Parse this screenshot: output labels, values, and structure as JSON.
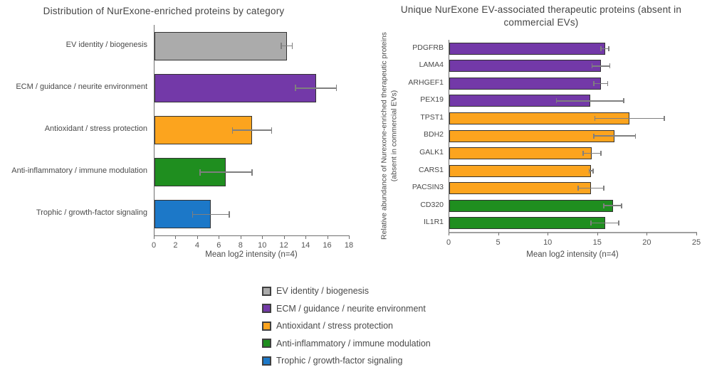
{
  "colors": {
    "gray": "#ABABAB",
    "purple": "#7339A8",
    "orange": "#FCA41E",
    "green": "#1F8E1F",
    "blue": "#1C78C8",
    "bar_border": "#333333",
    "error_bar": "#7F7F7F",
    "axis_line": "#6E6E6E",
    "text": "#4A4A4A"
  },
  "chart_data": [
    {
      "type": "bar",
      "orientation": "horizontal",
      "title": "Distribution of NurExone-enriched proteins by category",
      "categories": [
        "EV identity / biogenesis",
        "ECM / guidance / neurite environment",
        "Antioxidant / stress protection",
        "Anti-inflammatory / immune modulation",
        "Trophic / growth-factor signaling"
      ],
      "values": [
        12.2,
        14.9,
        9.0,
        6.6,
        5.2
      ],
      "errors": [
        0.5,
        1.9,
        1.8,
        2.4,
        1.7
      ],
      "bar_colors": [
        "gray",
        "purple",
        "orange",
        "green",
        "blue"
      ],
      "xlabel": "Mean log2 intensity (n=4)",
      "ylabel": "",
      "xlim": [
        0,
        18
      ],
      "xticks": [
        0,
        2,
        4,
        6,
        8,
        10,
        12,
        14,
        16,
        18
      ],
      "grid": false,
      "legend_position": "none"
    },
    {
      "type": "bar",
      "orientation": "horizontal",
      "title": "Unique NurExone EV-associated therapeutic proteins (absent in commercial EVs)",
      "categories": [
        "PDGFRB",
        "LAMA4",
        "ARHGEF1",
        "PEX19",
        "TPST1",
        "BDH2",
        "GALK1",
        "CARS1",
        "PACSIN3",
        "CD320",
        "IL1R1"
      ],
      "values": [
        15.7,
        15.3,
        15.3,
        14.2,
        18.2,
        16.7,
        14.4,
        14.3,
        14.3,
        16.5,
        15.7
      ],
      "errors": [
        0.4,
        0.9,
        0.7,
        3.4,
        3.5,
        2.1,
        0.9,
        0.2,
        1.3,
        0.9,
        1.4
      ],
      "bar_colors": [
        "purple",
        "purple",
        "purple",
        "purple",
        "orange",
        "orange",
        "orange",
        "orange",
        "orange",
        "green",
        "green"
      ],
      "xlabel": "Mean log2 intensity (n=4)",
      "ylabel": "Relative abundance of Nurexone-enriched therapeutic proteins (absent in commercial EVs)",
      "xlim": [
        0,
        25
      ],
      "xticks": [
        0,
        5,
        10,
        15,
        20,
        25
      ],
      "grid": false,
      "legend_position": "none"
    }
  ],
  "legend": {
    "items": [
      {
        "label": "EV identity / biogenesis",
        "color": "gray"
      },
      {
        "label": "ECM / guidance / neurite environment",
        "color": "purple"
      },
      {
        "label": "Antioxidant / stress protection",
        "color": "orange"
      },
      {
        "label": "Anti-inflammatory / immune modulation",
        "color": "green"
      },
      {
        "label": "Trophic / growth-factor signaling",
        "color": "blue"
      }
    ]
  }
}
